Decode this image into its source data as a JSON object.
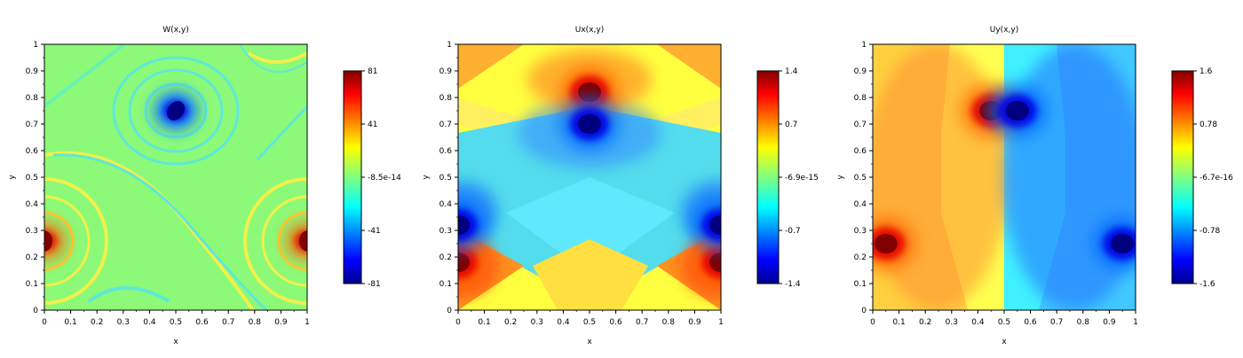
{
  "chart_data": [
    {
      "type": "heatmap",
      "title": "W(x,y)",
      "xlabel": "x",
      "ylabel": "y",
      "xlim": [
        0,
        1
      ],
      "ylim": [
        0,
        1
      ],
      "xticks": [
        "0",
        "0.1",
        "0.2",
        "0.3",
        "0.4",
        "0.5",
        "0.6",
        "0.7",
        "0.8",
        "0.9",
        "1"
      ],
      "yticks": [
        "0",
        "0.1",
        "0.2",
        "0.3",
        "0.4",
        "0.5",
        "0.6",
        "0.7",
        "0.8",
        "0.9",
        "1"
      ],
      "colorbar": {
        "min": -81,
        "max": 81,
        "labels": [
          "81",
          "41",
          "-8.5e-14",
          "-41",
          "-81"
        ]
      },
      "colormap": "jet",
      "background_level": 0.0,
      "features": [
        {
          "kind": "vortex",
          "x": 0.5,
          "y": 0.75,
          "value": -81
        },
        {
          "kind": "vortex",
          "x": 0.0,
          "y": 0.26,
          "value": 81
        },
        {
          "kind": "vortex",
          "x": 1.0,
          "y": 0.26,
          "value": 81
        }
      ]
    },
    {
      "type": "heatmap",
      "title": "Ux(x,y)",
      "xlabel": "x",
      "ylabel": "y",
      "xlim": [
        0,
        1
      ],
      "ylim": [
        0,
        1
      ],
      "xticks": [
        "0",
        "0.1",
        "0.2",
        "0.3",
        "0.4",
        "0.5",
        "0.6",
        "0.7",
        "0.8",
        "0.9",
        "1"
      ],
      "yticks": [
        "0",
        "0.1",
        "0.2",
        "0.3",
        "0.4",
        "0.5",
        "0.6",
        "0.7",
        "0.8",
        "0.9",
        "1"
      ],
      "colorbar": {
        "min": -1.4,
        "max": 1.4,
        "labels": [
          "1.4",
          "0.7",
          "-6.9e-15",
          "-0.7",
          "-1.4"
        ]
      },
      "colormap": "jet",
      "features": [
        {
          "kind": "max",
          "x": 0.5,
          "y": 0.82,
          "value": 1.4
        },
        {
          "kind": "min",
          "x": 0.5,
          "y": 0.7,
          "value": -1.4
        },
        {
          "kind": "max",
          "x": 0.0,
          "y": 0.18,
          "value": 1.4
        },
        {
          "kind": "max",
          "x": 1.0,
          "y": 0.18,
          "value": 1.4
        },
        {
          "kind": "min",
          "x": 0.0,
          "y": 0.32,
          "value": -1.4
        },
        {
          "kind": "min",
          "x": 1.0,
          "y": 0.32,
          "value": -1.4
        }
      ]
    },
    {
      "type": "heatmap",
      "title": "Uy(x,y)",
      "xlabel": "x",
      "ylabel": "y",
      "xlim": [
        0,
        1
      ],
      "ylim": [
        0,
        1
      ],
      "xticks": [
        "0",
        "0.1",
        "0.2",
        "0.3",
        "0.4",
        "0.5",
        "0.6",
        "0.7",
        "0.8",
        "0.9",
        "1"
      ],
      "yticks": [
        "0",
        "0.1",
        "0.2",
        "0.3",
        "0.4",
        "0.5",
        "0.6",
        "0.7",
        "0.8",
        "0.9",
        "1"
      ],
      "colorbar": {
        "min": -1.6,
        "max": 1.6,
        "labels": [
          "1.6",
          "0.78",
          "-6.7e-16",
          "-0.78",
          "-1.6"
        ]
      },
      "colormap": "jet",
      "features": [
        {
          "kind": "max",
          "x": 0.45,
          "y": 0.75,
          "value": 1.6
        },
        {
          "kind": "min",
          "x": 0.55,
          "y": 0.75,
          "value": -1.6
        },
        {
          "kind": "max",
          "x": 0.05,
          "y": 0.25,
          "value": 1.6
        },
        {
          "kind": "min",
          "x": 0.95,
          "y": 0.25,
          "value": -1.6
        }
      ]
    }
  ]
}
